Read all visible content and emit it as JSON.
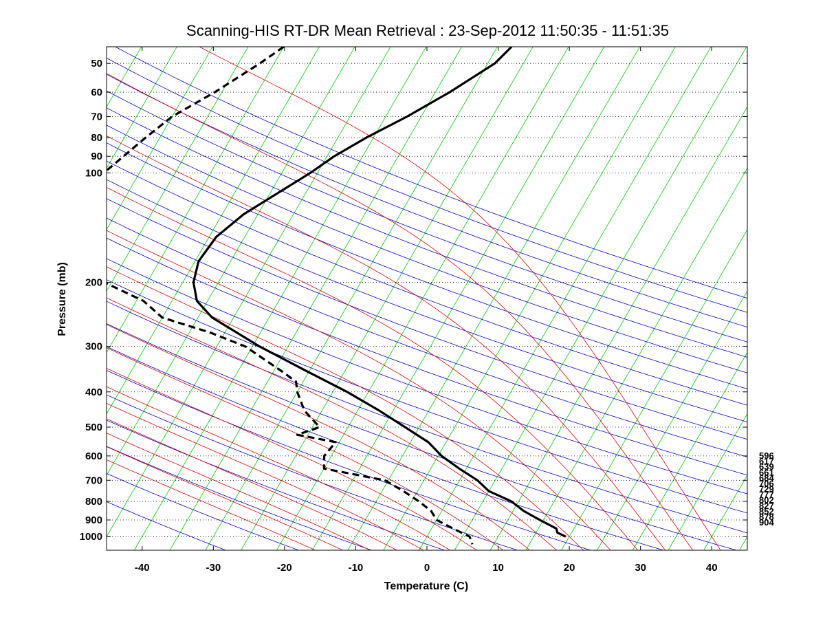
{
  "chart_data": {
    "type": "line",
    "title": "Scanning-HIS RT-DR Mean Retrieval : 23-Sep-2012 11:50:35 - 11:51:35",
    "xlabel": "Temperature (C)",
    "ylabel": "Pressure (mb)",
    "xlim": [
      -45,
      45
    ],
    "ylim": [
      1090,
      45
    ],
    "y_scale": "log",
    "grid": "horizontal dotted at pressure ticks",
    "x_ticks": [
      -40,
      -30,
      -20,
      -10,
      0,
      10,
      20,
      30,
      40
    ],
    "y_ticks": [
      50,
      60,
      70,
      80,
      90,
      100,
      200,
      300,
      400,
      500,
      600,
      700,
      800,
      900,
      1000
    ],
    "background_lines": {
      "isotherm_color": "#00cc00",
      "dry_adiabat_color": "#0000cc",
      "moist_adiabat_color": "#dd0000",
      "mixing_ratio_color": "#dd0000"
    },
    "series": [
      {
        "name": "Temperature",
        "style": "solid",
        "color": "#000000",
        "points": [
          {
            "p": 45,
            "t": -28
          },
          {
            "p": 50,
            "t": -29
          },
          {
            "p": 60,
            "t": -33
          },
          {
            "p": 70,
            "t": -37
          },
          {
            "p": 80,
            "t": -41
          },
          {
            "p": 90,
            "t": -44
          },
          {
            "p": 100,
            "t": -46
          },
          {
            "p": 130,
            "t": -52
          },
          {
            "p": 150,
            "t": -54
          },
          {
            "p": 175,
            "t": -54.5
          },
          {
            "p": 200,
            "t": -53.5
          },
          {
            "p": 225,
            "t": -51.5
          },
          {
            "p": 250,
            "t": -48
          },
          {
            "p": 300,
            "t": -39
          },
          {
            "p": 350,
            "t": -30.5
          },
          {
            "p": 400,
            "t": -23
          },
          {
            "p": 450,
            "t": -17
          },
          {
            "p": 500,
            "t": -12
          },
          {
            "p": 550,
            "t": -7.5
          },
          {
            "p": 600,
            "t": -4.5
          },
          {
            "p": 650,
            "t": -1
          },
          {
            "p": 700,
            "t": 2.5
          },
          {
            "p": 750,
            "t": 5
          },
          {
            "p": 800,
            "t": 9
          },
          {
            "p": 850,
            "t": 11.5
          },
          {
            "p": 900,
            "t": 14.5
          },
          {
            "p": 950,
            "t": 17.5
          },
          {
            "p": 975,
            "t": 18
          },
          {
            "p": 1000,
            "t": 19.5
          }
        ]
      },
      {
        "name": "Dewpoint",
        "style": "dashed",
        "color": "#000000",
        "points": [
          {
            "p": 45,
            "t": -60
          },
          {
            "p": 50,
            "t": -62
          },
          {
            "p": 60,
            "t": -66
          },
          {
            "p": 70,
            "t": -70
          },
          {
            "p": 80,
            "t": -72
          },
          {
            "p": 100,
            "t": -75
          },
          {
            "p": 130,
            "t": -75
          },
          {
            "p": 150,
            "t": -73.5
          },
          {
            "p": 175,
            "t": -70
          },
          {
            "p": 200,
            "t": -66
          },
          {
            "p": 225,
            "t": -59
          },
          {
            "p": 250,
            "t": -55
          },
          {
            "p": 275,
            "t": -47
          },
          {
            "p": 300,
            "t": -41
          },
          {
            "p": 350,
            "t": -34
          },
          {
            "p": 375,
            "t": -31
          },
          {
            "p": 400,
            "t": -30
          },
          {
            "p": 450,
            "t": -27.5
          },
          {
            "p": 500,
            "t": -24
          },
          {
            "p": 525,
            "t": -26.5
          },
          {
            "p": 550,
            "t": -20.5
          },
          {
            "p": 600,
            "t": -21
          },
          {
            "p": 650,
            "t": -20
          },
          {
            "p": 700,
            "t": -10.5
          },
          {
            "p": 750,
            "t": -7
          },
          {
            "p": 800,
            "t": -4
          },
          {
            "p": 850,
            "t": -1.5
          },
          {
            "p": 900,
            "t": 0
          },
          {
            "p": 950,
            "t": 3
          },
          {
            "p": 1000,
            "t": 6
          },
          {
            "p": 1050,
            "t": 7
          }
        ]
      }
    ],
    "right_labels": [
      "596",
      "617",
      "639",
      "661",
      "684",
      "706",
      "729",
      "777",
      "802",
      "827",
      "852",
      "878",
      "904"
    ]
  }
}
